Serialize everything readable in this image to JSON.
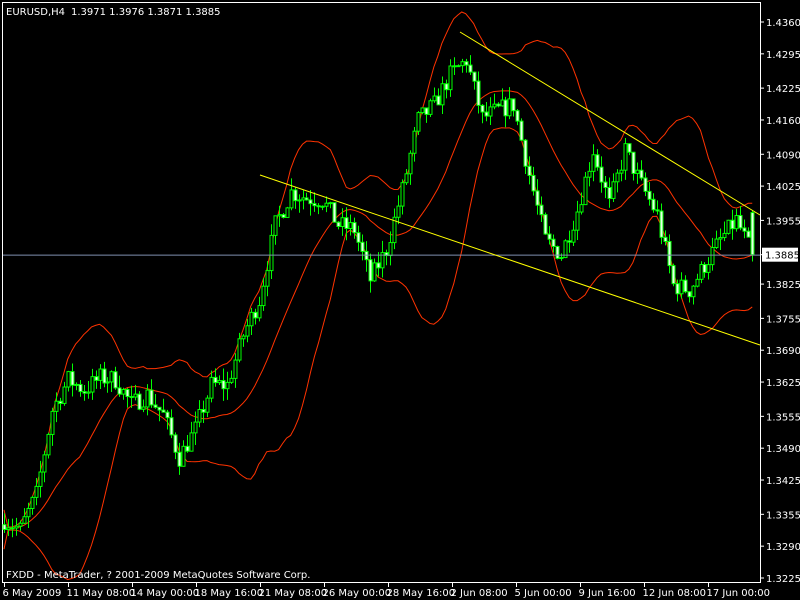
{
  "header": {
    "symbol": "EURUSD,H4",
    "ohlc": "1.3971 1.3976 1.3871 1.3885"
  },
  "footer": {
    "copyright": "FXDD - MetaTrader, ? 2001-2009 MetaQuotes Software Corp."
  },
  "colors": {
    "background": "#000000",
    "candle_outline": "#00ff00",
    "bear_body": "#e8ffe8",
    "bull_body": "#000000",
    "bollinger": "#ff3300",
    "trendline": "#ffff00",
    "bid_line": "#8090b0",
    "axis": "#ffffff"
  },
  "chart_data": {
    "type": "candlestick",
    "title": "EURUSD,H4",
    "timeframe": "H4",
    "indicators": [
      "Bollinger Bands"
    ],
    "grid": false,
    "current_price": 1.3885,
    "last_bar": {
      "open": 1.3971,
      "high": 1.3976,
      "low": 1.3871,
      "close": 1.3885
    },
    "ylim": [
      1.3225,
      1.436
    ],
    "y_ticks": [
      "1.4360",
      "1.4295",
      "1.4225",
      "1.4160",
      "1.4090",
      "1.4025",
      "1.3955",
      "1.3885",
      "1.3825",
      "1.3755",
      "1.3690",
      "1.3625",
      "1.3555",
      "1.3490",
      "1.3425",
      "1.3355",
      "1.3290",
      "1.3225"
    ],
    "x_ticks": [
      "6 May 2009",
      "11 May 08:00",
      "14 May 00:00",
      "18 May 16:00",
      "21 May 08:00",
      "26 May 00:00",
      "28 May 16:00",
      "2 Jun 08:00",
      "5 Jun 00:00",
      "9 Jun 16:00",
      "12 Jun 08:00",
      "17 Jun 00:00"
    ],
    "approx_close_every_4_bars": [
      1.3344,
      1.3324,
      1.3395,
      1.3568,
      1.363,
      1.3609,
      1.3634,
      1.363,
      1.3579,
      1.3599,
      1.3558,
      1.3471,
      1.3528,
      1.3619,
      1.3619,
      1.3721,
      1.3793,
      1.3946,
      1.4013,
      1.4001,
      1.3997,
      1.3946,
      1.3936,
      1.3834,
      1.3895,
      1.4017,
      1.416,
      1.4191,
      1.4252,
      1.4282,
      1.4164,
      1.418,
      1.4191,
      1.4048,
      1.3915,
      1.3885,
      1.3976,
      1.4099,
      1.3987,
      1.4099,
      1.4027,
      1.3966,
      1.3823,
      1.3813,
      1.3864,
      1.3915,
      1.3956,
      1.3885
    ],
    "trendlines": [
      {
        "from": {
          "x": "21 May 08:00",
          "y": 1.4045
        },
        "to": {
          "x": "17 Jun 20:00",
          "y": 1.3698
        }
      },
      {
        "from": {
          "x": "2 Jun 08:00",
          "y": 1.434
        },
        "to": {
          "x": "17 Jun 20:00",
          "y": 1.3965
        }
      }
    ]
  }
}
